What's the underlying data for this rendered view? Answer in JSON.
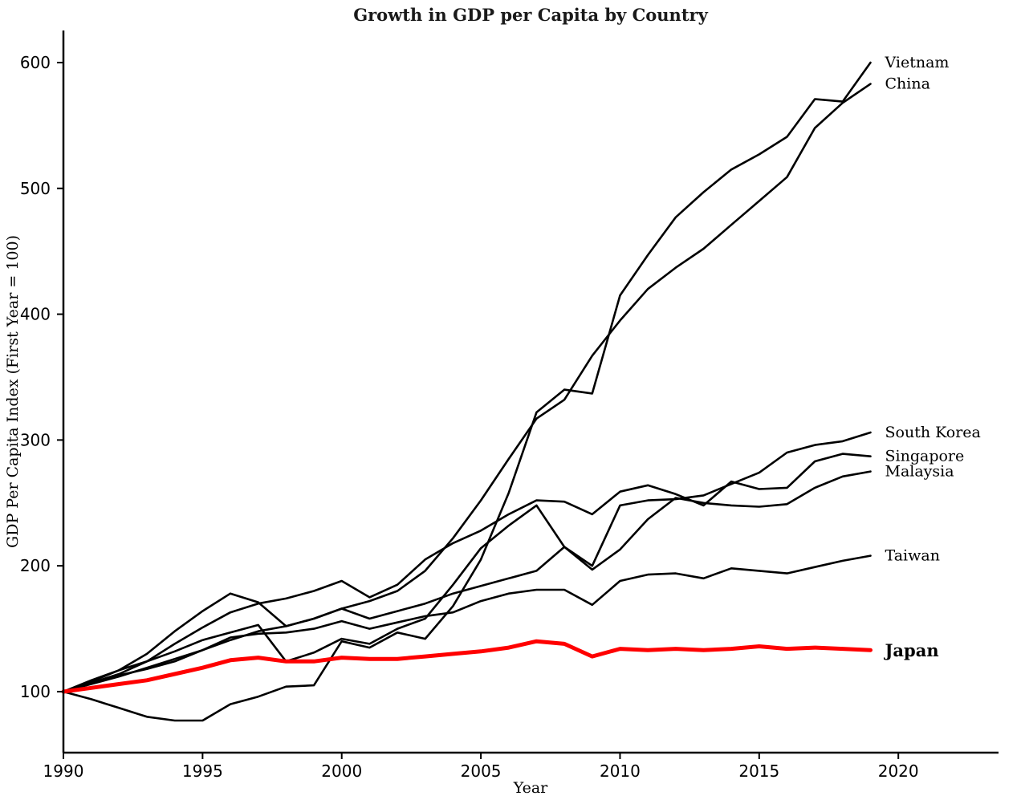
{
  "chart_data": {
    "type": "line",
    "title": "Growth in GDP per Capita by Country",
    "xlabel": "Year",
    "ylabel": "GDP Per Capita Index (First Year = 100)",
    "x_ticks": [
      1990,
      1995,
      2000,
      2005,
      2010,
      2015,
      2020
    ],
    "y_ticks": [
      100,
      200,
      300,
      400,
      500,
      600
    ],
    "xlim": [
      1990,
      2023.6
    ],
    "ylim": [
      51.5,
      625.5
    ],
    "grid": false,
    "legend_position": "right-edge-direct-labels",
    "x": [
      1990,
      1991,
      1992,
      1993,
      1994,
      1995,
      1996,
      1997,
      1998,
      1999,
      2000,
      2001,
      2002,
      2003,
      2004,
      2005,
      2006,
      2007,
      2008,
      2009,
      2010,
      2011,
      2012,
      2013,
      2014,
      2015,
      2016,
      2017,
      2018,
      2019
    ],
    "series": [
      {
        "name": "China",
        "label": "China",
        "color": "#000000",
        "line_width": 2.6,
        "emphasis": false,
        "values": [
          100,
          106,
          112,
          119,
          126,
          133,
          141,
          148,
          152,
          158,
          166,
          172,
          180,
          196,
          222,
          252,
          285,
          317,
          332,
          367,
          395,
          420,
          437,
          452,
          471,
          490,
          509,
          548,
          568,
          583
        ]
      },
      {
        "name": "Vietnam",
        "label": "Vietnam",
        "color": "#000000",
        "line_width": 2.6,
        "emphasis": false,
        "values": [
          100,
          94,
          87,
          80,
          77,
          77,
          90,
          96,
          104,
          105,
          140,
          135,
          147,
          142,
          168,
          205,
          258,
          322,
          340,
          337,
          415,
          447,
          477,
          497,
          515,
          527,
          541,
          571,
          569,
          600
        ]
      },
      {
        "name": "South Korea",
        "label": "South Korea",
        "color": "#000000",
        "line_width": 2.6,
        "emphasis": false,
        "values": [
          100,
          109,
          117,
          124,
          132,
          141,
          147,
          153,
          124,
          131,
          142,
          138,
          150,
          158,
          185,
          214,
          232,
          248,
          215,
          200,
          248,
          252,
          253,
          256,
          265,
          274,
          290,
          296,
          299,
          306
        ]
      },
      {
        "name": "Singapore",
        "label": "Singapore",
        "color": "#000000",
        "line_width": 2.6,
        "emphasis": false,
        "values": [
          100,
          107,
          114,
          124,
          138,
          151,
          163,
          170,
          174,
          180,
          188,
          175,
          185,
          205,
          218,
          228,
          241,
          252,
          251,
          241,
          259,
          264,
          257,
          248,
          267,
          261,
          262,
          283,
          289,
          287
        ]
      },
      {
        "name": "Malaysia",
        "label": "Malaysia",
        "color": "#000000",
        "line_width": 2.6,
        "emphasis": false,
        "values": [
          100,
          108,
          117,
          130,
          148,
          164,
          178,
          171,
          152,
          158,
          166,
          158,
          164,
          170,
          178,
          184,
          190,
          196,
          215,
          197,
          213,
          237,
          254,
          250,
          248,
          247,
          249,
          262,
          271,
          275
        ]
      },
      {
        "name": "Taiwan",
        "label": "Taiwan",
        "color": "#000000",
        "line_width": 2.6,
        "emphasis": false,
        "values": [
          100,
          107,
          113,
          118,
          124,
          133,
          143,
          146,
          147,
          150,
          156,
          150,
          155,
          160,
          163,
          172,
          178,
          181,
          181,
          169,
          188,
          193,
          194,
          190,
          198,
          196,
          194,
          199,
          204,
          208
        ]
      },
      {
        "name": "Japan",
        "label": "Japan",
        "color": "#ff0000",
        "line_width": 5,
        "emphasis": true,
        "values": [
          100,
          103,
          106,
          109,
          114,
          119,
          125,
          127,
          124,
          124,
          127,
          126,
          126,
          128,
          130,
          132,
          135,
          140,
          138,
          128,
          134,
          133,
          134,
          133,
          134,
          136,
          134,
          135,
          134,
          133
        ]
      }
    ],
    "colors": {
      "default_line": "#000000",
      "emphasis_line": "#ff0000",
      "axis": "#000000",
      "background": "#ffffff"
    }
  }
}
